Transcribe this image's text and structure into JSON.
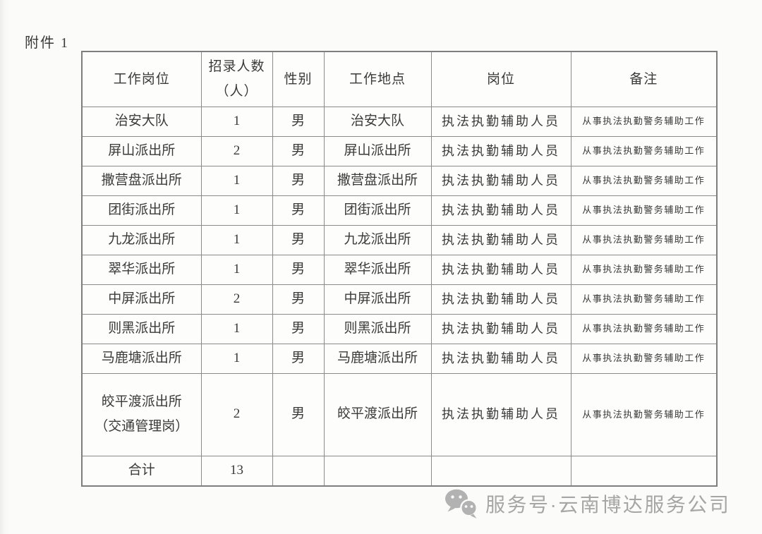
{
  "page": {
    "attachment_label": "附件 1"
  },
  "table": {
    "headers": [
      "工作岗位",
      "招录人数\n（人）",
      "性别",
      "工作地点",
      "岗位",
      "备注"
    ],
    "rows": [
      [
        "治安大队",
        "1",
        "男",
        "治安大队",
        "执法执勤辅助人员",
        "从事执法执勤警务辅助工作"
      ],
      [
        "屏山派出所",
        "2",
        "男",
        "屏山派出所",
        "执法执勤辅助人员",
        "从事执法执勤警务辅助工作"
      ],
      [
        "撒营盘派出所",
        "1",
        "男",
        "撒营盘派出所",
        "执法执勤辅助人员",
        "从事执法执勤警务辅助工作"
      ],
      [
        "团街派出所",
        "1",
        "男",
        "团街派出所",
        "执法执勤辅助人员",
        "从事执法执勤警务辅助工作"
      ],
      [
        "九龙派出所",
        "1",
        "男",
        "九龙派出所",
        "执法执勤辅助人员",
        "从事执法执勤警务辅助工作"
      ],
      [
        "翠华派出所",
        "1",
        "男",
        "翠华派出所",
        "执法执勤辅助人员",
        "从事执法执勤警务辅助工作"
      ],
      [
        "中屏派出所",
        "2",
        "男",
        "中屏派出所",
        "执法执勤辅助人员",
        "从事执法执勤警务辅助工作"
      ],
      [
        "则黑派出所",
        "1",
        "男",
        "则黑派出所",
        "执法执勤辅助人员",
        "从事执法执勤警务辅助工作"
      ],
      [
        "马鹿塘派出所",
        "1",
        "男",
        "马鹿塘派出所",
        "执法执勤辅助人员",
        "从事执法执勤警务辅助工作"
      ],
      [
        "皎平渡派出所\n（交通管理岗）",
        "2",
        "男",
        "皎平渡派出所",
        "执法执勤辅助人员",
        "从事执法执勤警务辅助工作"
      ],
      [
        "合计",
        "13",
        "",
        "",
        "",
        ""
      ]
    ],
    "total_label": "合计",
    "total_value": "13"
  },
  "footer": {
    "icon": "wechat-bubbles-icon",
    "label": "服务号·云南博达服务公司"
  },
  "colors": {
    "background": "#fbfbf9",
    "text": "#3a3a3a",
    "border": "#8b8b8b",
    "footer_text": "#a6a6a6",
    "icon_gray": "#b2b2b2"
  }
}
